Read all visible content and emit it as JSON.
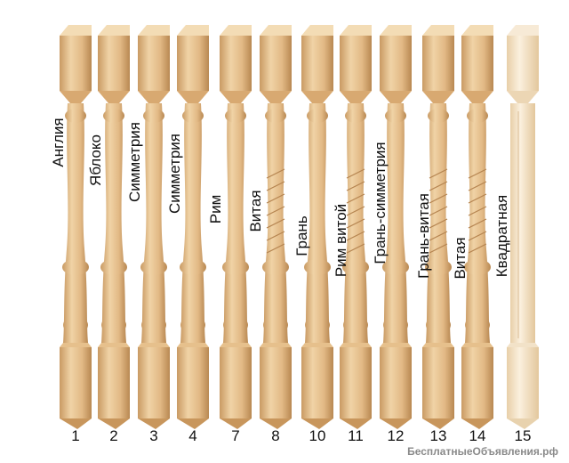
{
  "balusters": [
    {
      "number": "1",
      "name": "Англия"
    },
    {
      "number": "2",
      "name": "Яблоко"
    },
    {
      "number": "3",
      "name": "Симметрия"
    },
    {
      "number": "4",
      "name": "Симметрия"
    },
    {
      "number": "7",
      "name": "Рим"
    },
    {
      "number": "8",
      "name": "Витая"
    },
    {
      "number": "10",
      "name": "Грань"
    },
    {
      "number": "11",
      "name": "Рим витой"
    },
    {
      "number": "12",
      "name": "Грань-симметрия"
    },
    {
      "number": "13",
      "name": "Грань-витая"
    },
    {
      "number": "14",
      "name": "Витая"
    },
    {
      "number": "15",
      "name": "Квадратная"
    }
  ],
  "watermark": "БесплатныеОбъявления.рф",
  "colors": {
    "wood_light": "#f0d3a6",
    "wood_mid": "#dfb57e",
    "wood_dark": "#b98a55",
    "wood_pale": "#f6e6cc"
  }
}
